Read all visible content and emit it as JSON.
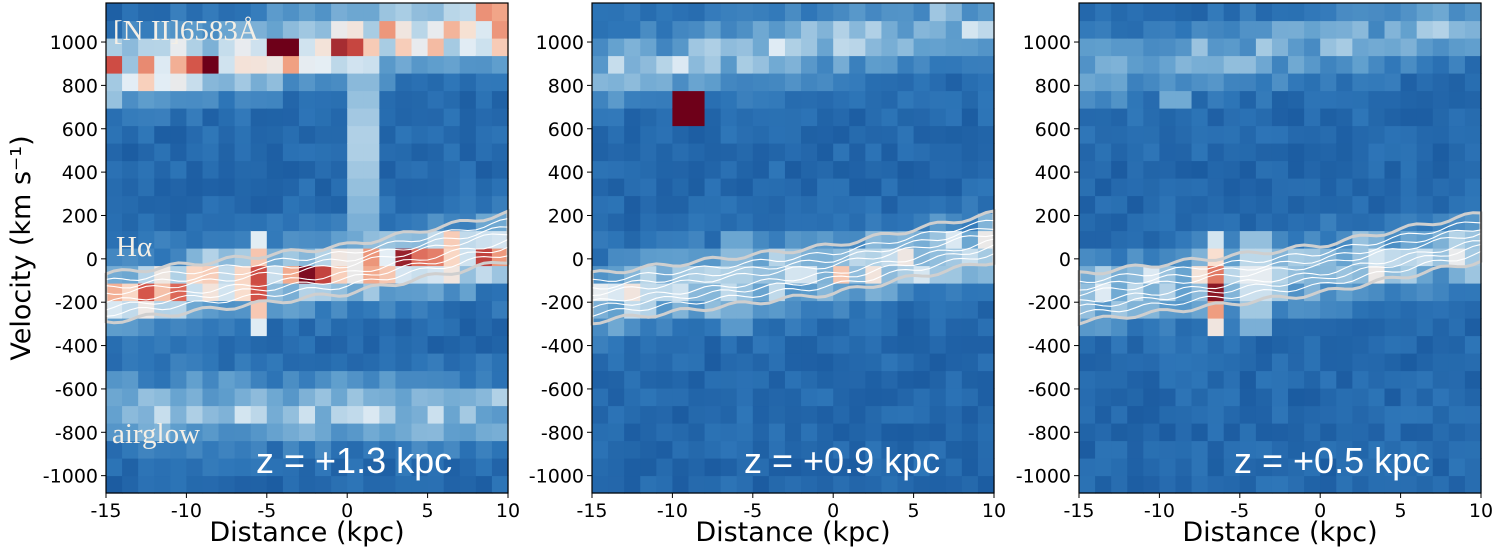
{
  "chart_data": [
    {
      "type": "heatmap",
      "title": "",
      "xlabel": "Distance (kpc)",
      "ylabel": "Velocity (km s⁻¹)",
      "xlim": [
        -15,
        10
      ],
      "ylim": [
        -1080,
        1180
      ],
      "xticks": [
        "-15",
        "-10",
        "-5",
        "0",
        "5",
        "10"
      ],
      "yticks": [
        "-1000",
        "-800",
        "-600",
        "-400",
        "-200",
        "0",
        "200",
        "400",
        "600",
        "800",
        "1000"
      ],
      "z_label": "z = +1.3 kpc",
      "annotations": [
        "[N II]6583Å",
        "Hα",
        "airglow"
      ],
      "colormap": "RdBu_r",
      "bands": [
        {
          "feature": "[N II]6583Å",
          "v_at_-15": 860,
          "v_at_10": 1080,
          "strength": 0.75
        },
        {
          "feature": "Hα",
          "v_at_-15": -180,
          "v_at_10": 40,
          "strength": 0.7
        },
        {
          "feature": "airglow",
          "v_at_-15": -700,
          "v_at_10": -700,
          "strength": 0.45
        }
      ],
      "hot_columns": [
        {
          "x": -5.5,
          "v_min": -340,
          "v_max": 120,
          "peak": 1.0
        },
        {
          "x": 1.0,
          "v_min": -100,
          "v_max": 1180,
          "peak": 0.68
        }
      ]
    },
    {
      "type": "heatmap",
      "title": "",
      "xlabel": "Distance (kpc)",
      "ylabel": "",
      "xlim": [
        -15,
        10
      ],
      "ylim": [
        -1080,
        1180
      ],
      "xticks": [
        "-15",
        "-10",
        "-5",
        "0",
        "5",
        "10"
      ],
      "yticks": [
        "-1000",
        "-800",
        "-600",
        "-400",
        "-200",
        "0",
        "200",
        "400",
        "600",
        "800",
        "1000"
      ],
      "z_label": "z = +0.9 kpc",
      "annotations": [],
      "colormap": "RdBu_r",
      "bands": [
        {
          "feature": "[N II]6583Å",
          "v_at_-15": 860,
          "v_at_10": 1080,
          "strength": 0.45
        },
        {
          "feature": "Hα",
          "v_at_-15": -180,
          "v_at_10": 40,
          "strength": 0.55
        }
      ],
      "hot_columns": [
        {
          "x": -6.0,
          "v_min": -320,
          "v_max": 150,
          "peak": 0.68
        }
      ],
      "hot_pixels": [
        {
          "x": -9.0,
          "v": 700,
          "value": 1.0
        }
      ]
    },
    {
      "type": "heatmap",
      "title": "",
      "xlabel": "Distance (kpc)",
      "ylabel": "",
      "xlim": [
        -15,
        10
      ],
      "ylim": [
        -1080,
        1180
      ],
      "xticks": [
        "-15",
        "-10",
        "-5",
        "0",
        "5",
        "10"
      ],
      "yticks": [
        "-1000",
        "-800",
        "-600",
        "-400",
        "-200",
        "0",
        "200",
        "400",
        "600",
        "800",
        "1000"
      ],
      "z_label": "z = +0.5 kpc",
      "annotations": [],
      "colormap": "RdBu_r",
      "bands": [
        {
          "feature": "[N II]6583Å",
          "v_at_-15": 860,
          "v_at_10": 1080,
          "strength": 0.35
        },
        {
          "feature": "Hα",
          "v_at_-15": -180,
          "v_at_10": 40,
          "strength": 0.5
        }
      ],
      "hot_columns": [
        {
          "x": -6.5,
          "v_min": -380,
          "v_max": 100,
          "peak": 1.0
        },
        {
          "x": -4.0,
          "v_min": -320,
          "v_max": 150,
          "peak": 0.78
        }
      ],
      "hot_pixels": [
        {
          "x": -9.0,
          "v": 720,
          "value": 0.55
        }
      ]
    }
  ]
}
